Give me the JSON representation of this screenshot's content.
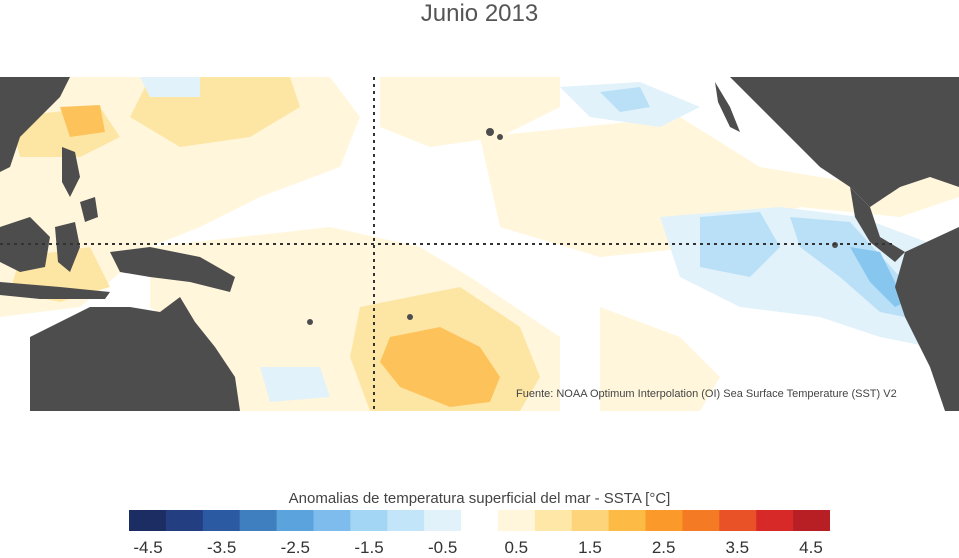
{
  "title": "Junio 2013",
  "source_note": "Fuente: NOAA Optimum Interpolation (OI) Sea Surface Temperature (SST) V2",
  "legend": {
    "title": "Anomalias de temperatura superficial del mar - SSTA  [°C]",
    "colors": [
      "#1c2d63",
      "#233f82",
      "#2b5aa3",
      "#3f7fc0",
      "#5aa3dc",
      "#7dbcec",
      "#a3d5f5",
      "#c3e5f9",
      "#e1f2fb",
      "#ffffff",
      "#fff6dc",
      "#ffe7a8",
      "#fdd47a",
      "#fdbb45",
      "#fb9a2a",
      "#f57a24",
      "#e95126",
      "#d72a28",
      "#b81f24"
    ],
    "tick_labels": [
      "-4.5",
      "-3.5",
      "-2.5",
      "-1.5",
      "-0.5",
      "0.5",
      "1.5",
      "2.5",
      "3.5",
      "4.5"
    ]
  },
  "colors": {
    "land": "#4d4d4d",
    "ocean_neutral": "#ffffff",
    "warm_light": "#fff6dc",
    "warm_mid": "#fde6a4",
    "warm_strong": "#fdc35a",
    "cool_light": "#e1f2fb",
    "cool_mid": "#b9e0f7",
    "cool_strong": "#86c6ef"
  }
}
